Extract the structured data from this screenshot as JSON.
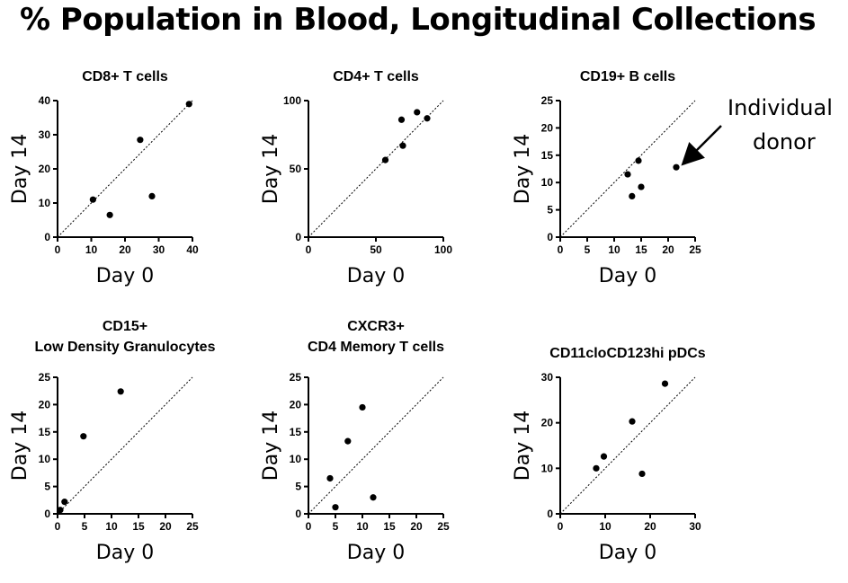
{
  "title": "% Population in Blood, Longitudinal Collections",
  "annotation": {
    "line1": "Individual",
    "line2": "donor"
  },
  "chart_data": [
    {
      "type": "scatter",
      "title": [
        "CD8+ T cells"
      ],
      "xlabel": "Day 0",
      "ylabel": "Day 14",
      "xlim": [
        0,
        40
      ],
      "ylim": [
        0,
        40
      ],
      "xticks": [
        0,
        10,
        20,
        30,
        40
      ],
      "yticks": [
        0,
        10,
        20,
        30,
        40
      ],
      "points": [
        [
          10.5,
          11
        ],
        [
          15.5,
          6.5
        ],
        [
          24.5,
          28.5
        ],
        [
          28,
          12
        ],
        [
          39,
          39
        ]
      ],
      "identity_line": true
    },
    {
      "type": "scatter",
      "title": [
        "CD4+ T cells"
      ],
      "xlabel": "Day 0",
      "ylabel": "Day 14",
      "xlim": [
        0,
        100
      ],
      "ylim": [
        0,
        100
      ],
      "xticks": [
        0,
        50,
        100
      ],
      "yticks": [
        0,
        50,
        100
      ],
      "points": [
        [
          57,
          56.5
        ],
        [
          69,
          86
        ],
        [
          70,
          67
        ],
        [
          80.5,
          91.5
        ],
        [
          88,
          87
        ]
      ],
      "identity_line": true
    },
    {
      "type": "scatter",
      "title": [
        "CD19+ B cells"
      ],
      "xlabel": "Day 0",
      "ylabel": "Day 14",
      "xlim": [
        0,
        25
      ],
      "ylim": [
        0,
        25
      ],
      "xticks": [
        0,
        5,
        10,
        15,
        20,
        25
      ],
      "yticks": [
        0,
        5,
        10,
        15,
        20,
        25
      ],
      "points": [
        [
          12.5,
          11.5
        ],
        [
          13.3,
          7.5
        ],
        [
          14.5,
          14
        ],
        [
          15,
          9.2
        ],
        [
          21.5,
          12.8
        ]
      ],
      "identity_line": true
    },
    {
      "type": "scatter",
      "title": [
        "CD15+",
        "Low Density Granulocytes"
      ],
      "xlabel": "Day 0",
      "ylabel": "Day 14",
      "xlim": [
        0,
        25
      ],
      "ylim": [
        0,
        25
      ],
      "xticks": [
        0,
        5,
        10,
        15,
        20,
        25
      ],
      "yticks": [
        0,
        5,
        10,
        15,
        20,
        25
      ],
      "points": [
        [
          0.5,
          0.7
        ],
        [
          1.3,
          2.2
        ],
        [
          4.8,
          14.2
        ],
        [
          11.7,
          22.4
        ]
      ],
      "identity_line": true
    },
    {
      "type": "scatter",
      "title": [
        "CXCR3+",
        "CD4 Memory T cells"
      ],
      "xlabel": "Day 0",
      "ylabel": "Day 14",
      "xlim": [
        0,
        25
      ],
      "ylim": [
        0,
        25
      ],
      "xticks": [
        0,
        5,
        10,
        15,
        20,
        25
      ],
      "yticks": [
        0,
        5,
        10,
        15,
        20,
        25
      ],
      "points": [
        [
          4,
          6.5
        ],
        [
          5,
          1.2
        ],
        [
          7.3,
          13.3
        ],
        [
          10,
          19.5
        ],
        [
          12,
          3
        ]
      ],
      "identity_line": true
    },
    {
      "type": "scatter",
      "title": [
        "CD11cloCD123hi pDCs"
      ],
      "xlabel": "Day 0",
      "ylabel": "Day 14",
      "xlim": [
        0,
        30
      ],
      "ylim": [
        0,
        30
      ],
      "xticks": [
        0,
        10,
        20,
        30
      ],
      "yticks": [
        0,
        10,
        20,
        30
      ],
      "points": [
        [
          8,
          10
        ],
        [
          9.7,
          12.6
        ],
        [
          16,
          20.3
        ],
        [
          18.2,
          8.8
        ],
        [
          23.3,
          28.6
        ]
      ],
      "identity_line": true
    }
  ]
}
